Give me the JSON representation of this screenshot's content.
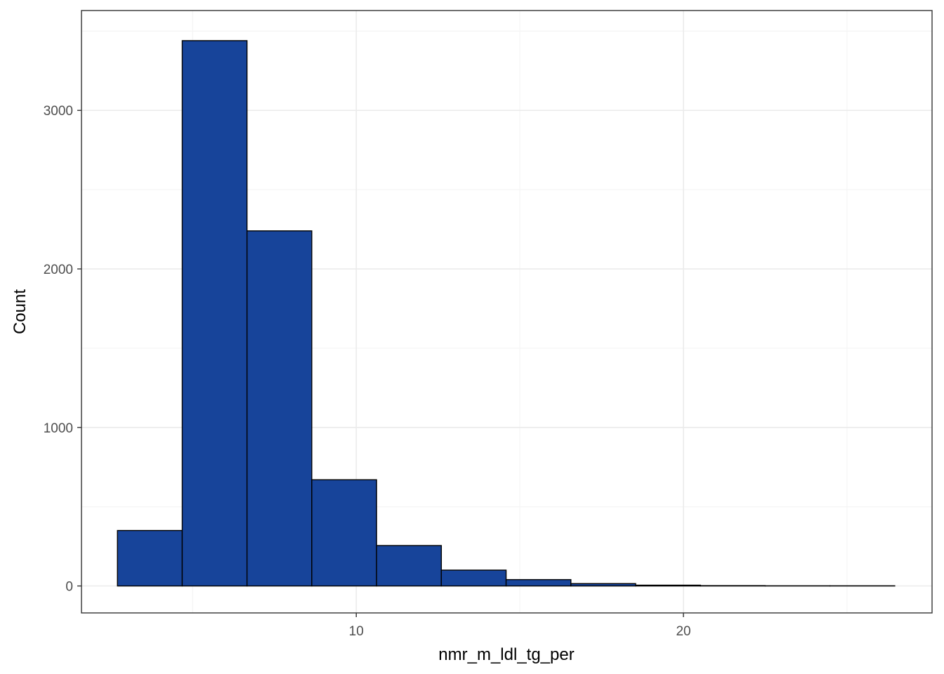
{
  "chart_data": {
    "type": "bar",
    "subtype": "histogram",
    "title": "",
    "xlabel": "nmr_m_ldl_tg_per",
    "ylabel": "Count",
    "bins": [
      {
        "x0": 2.7,
        "x1": 4.68,
        "count": 350
      },
      {
        "x0": 4.68,
        "x1": 6.66,
        "count": 3440
      },
      {
        "x0": 6.66,
        "x1": 8.64,
        "count": 2240
      },
      {
        "x0": 8.64,
        "x1": 10.62,
        "count": 670
      },
      {
        "x0": 10.62,
        "x1": 12.6,
        "count": 255
      },
      {
        "x0": 12.6,
        "x1": 14.58,
        "count": 100
      },
      {
        "x0": 14.58,
        "x1": 16.56,
        "count": 40
      },
      {
        "x0": 16.56,
        "x1": 18.54,
        "count": 15
      },
      {
        "x0": 18.54,
        "x1": 20.52,
        "count": 5
      },
      {
        "x0": 20.52,
        "x1": 22.5,
        "count": 2
      },
      {
        "x0": 22.5,
        "x1": 24.48,
        "count": 1
      },
      {
        "x0": 24.48,
        "x1": 26.46,
        "count": 1
      }
    ],
    "xlim": [
      1.6,
      27.6
    ],
    "ylim": [
      -170,
      3630
    ],
    "x_ticks": [
      10,
      20
    ],
    "x_minor_ticks": [
      5,
      15,
      25
    ],
    "y_ticks": [
      0,
      1000,
      2000,
      3000
    ],
    "y_minor_ticks": [
      500,
      1500,
      2500,
      3500
    ],
    "x_tick_labels": [
      "10",
      "20"
    ],
    "y_tick_labels": [
      "0",
      "1000",
      "2000",
      "3000"
    ],
    "grid": true,
    "legend": "none",
    "colors": {
      "fill": "#17449a",
      "outline": "#000000",
      "grid_major": "#ebebeb",
      "grid_minor": "#f5f5f5",
      "panel_border": "#333333",
      "tick_text": "#4d4d4d"
    }
  }
}
